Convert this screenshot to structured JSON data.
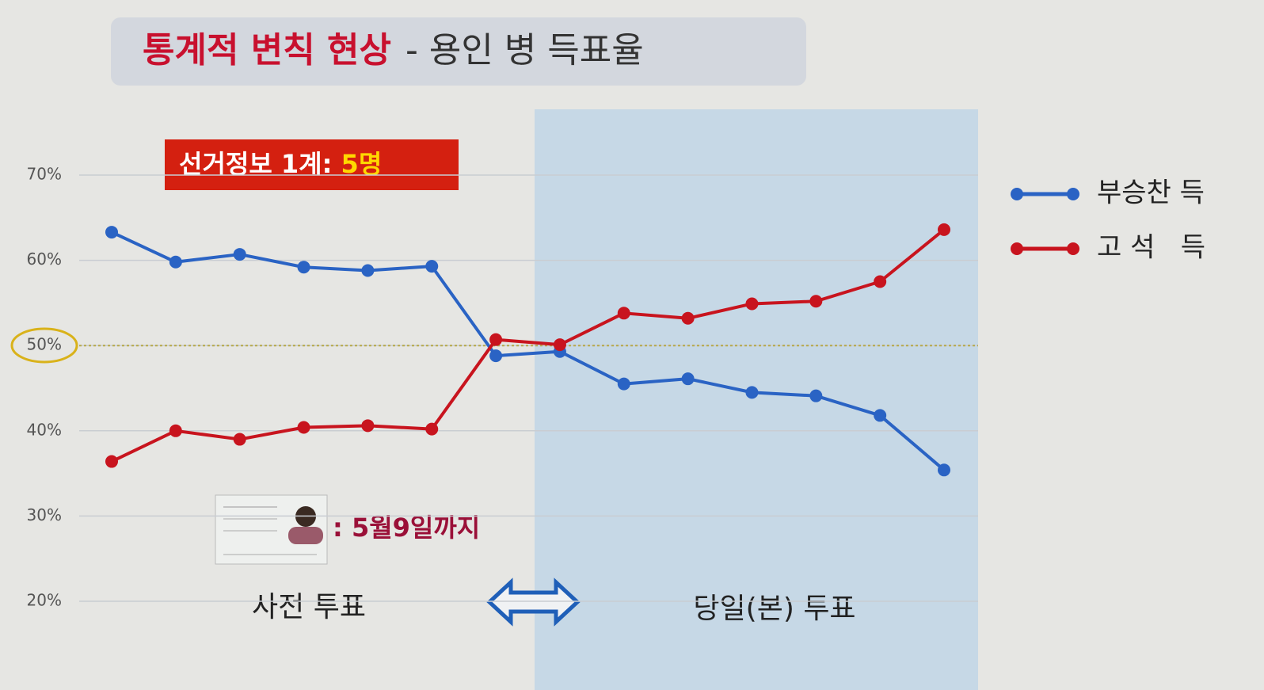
{
  "chart_data": {
    "type": "line",
    "title": "통계적 변칙 현상",
    "subtitle": "- 용인 병 득표율",
    "categories": [
      null,
      null,
      null,
      null,
      null,
      null,
      null,
      null,
      null,
      null,
      null,
      null,
      null,
      null
    ],
    "series": [
      {
        "name": "부승찬 득",
        "color": "#2a63c4",
        "values": [
          63.3,
          59.8,
          60.7,
          59.2,
          58.8,
          59.3,
          48.8,
          49.3,
          45.5,
          46.1,
          44.5,
          44.1,
          41.8,
          35.4
        ]
      },
      {
        "name": "고 석   득",
        "color": "#c8141e",
        "values": [
          36.4,
          40.0,
          39.0,
          40.4,
          40.6,
          40.2,
          50.7,
          50.1,
          53.8,
          53.2,
          54.9,
          55.2,
          57.5,
          63.6
        ]
      }
    ],
    "ylim": [
      20,
      70
    ],
    "yticks": [
      {
        "value": 20,
        "label": "20%"
      },
      {
        "value": 30,
        "label": "30%"
      },
      {
        "value": 40,
        "label": "40%"
      },
      {
        "value": 50,
        "label": "50%"
      },
      {
        "value": 60,
        "label": "60%"
      },
      {
        "value": 70,
        "label": "70%"
      }
    ],
    "grid": true,
    "reference_line": 50,
    "legend": "right",
    "annotations": {
      "badge_label": "선거정보 1계: ",
      "badge_value": "5명",
      "id_note": ": 5월9일까지",
      "early_vote": "사전 투표",
      "election_day": "당일(본) 투표"
    }
  }
}
